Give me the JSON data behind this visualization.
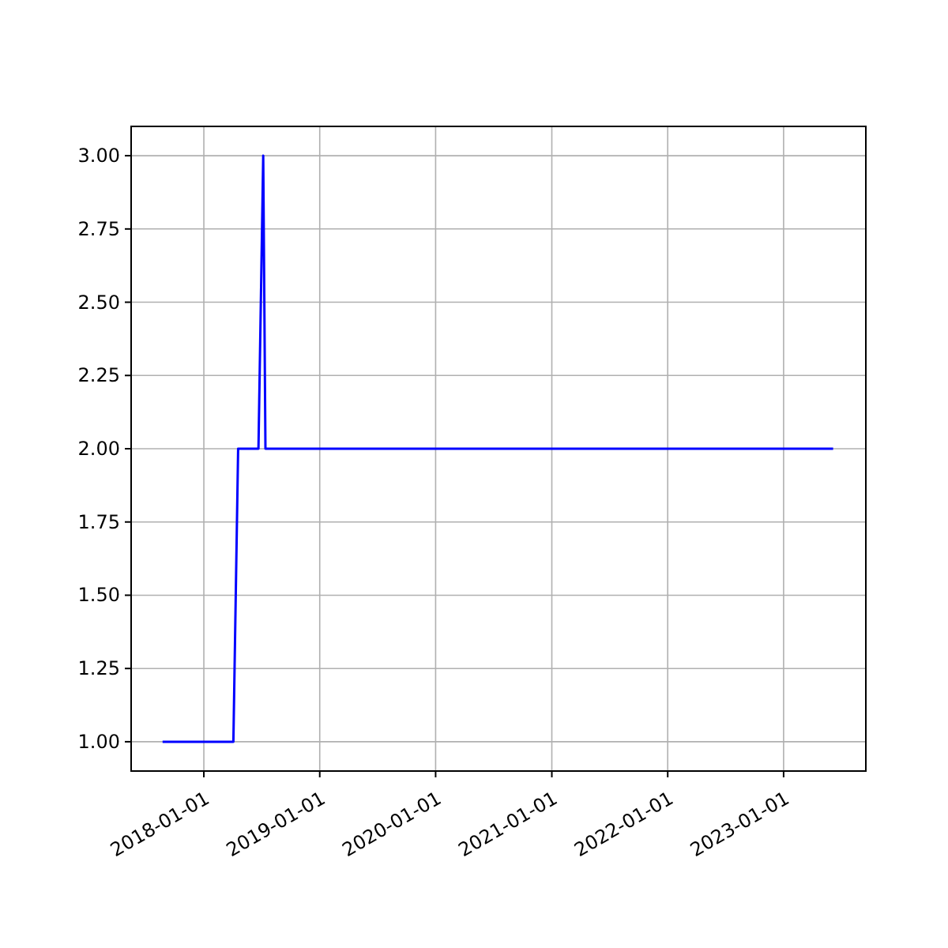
{
  "chart_data": {
    "type": "line",
    "x": [
      "2017-08-24",
      "2018-04-04",
      "2018-04-19",
      "2018-06-22",
      "2018-07-07",
      "2018-07-14",
      "2023-06-06"
    ],
    "series": [
      {
        "color": "#0000ff",
        "values": [
          1,
          1,
          2,
          2,
          3,
          2,
          2
        ]
      }
    ],
    "xlim": [
      "2017-05-17",
      "2023-09-17"
    ],
    "xticks": [
      {
        "value": "2018-01-01",
        "label": "2018-01-01"
      },
      {
        "value": "2019-01-01",
        "label": "2019-01-01"
      },
      {
        "value": "2020-01-01",
        "label": "2020-01-01"
      },
      {
        "value": "2021-01-01",
        "label": "2021-01-01"
      },
      {
        "value": "2022-01-01",
        "label": "2022-01-01"
      },
      {
        "value": "2023-01-01",
        "label": "2023-01-01"
      }
    ],
    "ylim": [
      0.9,
      3.1
    ],
    "yticks": [
      {
        "value": 1,
        "label": "1.00"
      },
      {
        "value": 1.25,
        "label": "1.25"
      },
      {
        "value": 1.5,
        "label": "1.50"
      },
      {
        "value": 1.75,
        "label": "1.75"
      },
      {
        "value": 2,
        "label": "2.00"
      },
      {
        "value": 2.25,
        "label": "2.25"
      },
      {
        "value": 2.5,
        "label": "2.50"
      },
      {
        "value": 2.75,
        "label": "2.75"
      },
      {
        "value": 3,
        "label": "3.00"
      }
    ],
    "grid": true
  }
}
